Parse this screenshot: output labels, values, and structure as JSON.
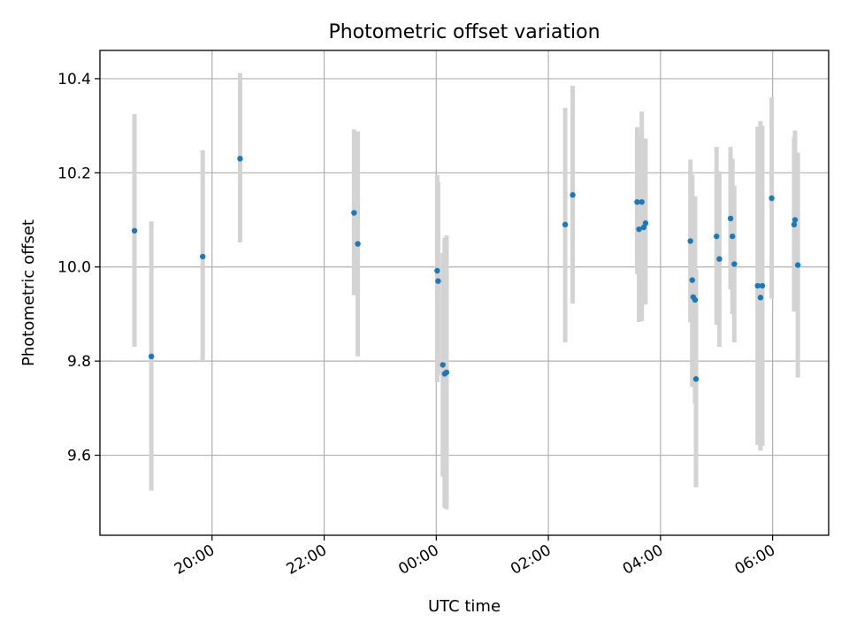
{
  "chart_data": {
    "type": "scatter",
    "title": "Photometric offset variation",
    "xlabel": "UTC time",
    "ylabel": "Photometric offset",
    "x_unit": "hours (UTC, 24h clock wrapping past midnight)",
    "xlim": [
      "18:00",
      "07:00"
    ],
    "ylim": [
      9.43,
      10.46
    ],
    "grid": true,
    "x_ticks": [
      "20:00",
      "22:00",
      "00:00",
      "02:00",
      "04:00",
      "06:00"
    ],
    "y_ticks": [
      "9.6",
      "9.8",
      "10.0",
      "10.2",
      "10.4"
    ],
    "marker_color": "#1f77b4",
    "errorbar_color": "#d3d3d3",
    "points": [
      {
        "x": "18:37",
        "y": 10.077,
        "ylo": 9.83,
        "yhi": 10.325
      },
      {
        "x": "18:55",
        "y": 9.81,
        "ylo": 9.525,
        "yhi": 10.097
      },
      {
        "x": "19:50",
        "y": 10.022,
        "ylo": 9.8,
        "yhi": 10.248
      },
      {
        "x": "20:30",
        "y": 10.23,
        "ylo": 10.052,
        "yhi": 10.412
      },
      {
        "x": "22:32",
        "y": 10.115,
        "ylo": 9.94,
        "yhi": 10.292
      },
      {
        "x": "22:36",
        "y": 10.049,
        "ylo": 9.81,
        "yhi": 10.288
      },
      {
        "x": "00:01",
        "y": 9.992,
        "ylo": 9.755,
        "yhi": 10.195
      },
      {
        "x": "00:02",
        "y": 9.97,
        "ylo": 9.77,
        "yhi": 10.18
      },
      {
        "x": "00:07",
        "y": 9.792,
        "ylo": 9.555,
        "yhi": 10.03
      },
      {
        "x": "00:09",
        "y": 9.773,
        "ylo": 9.488,
        "yhi": 10.062
      },
      {
        "x": "00:11",
        "y": 9.776,
        "ylo": 9.485,
        "yhi": 10.067
      },
      {
        "x": "02:18",
        "y": 10.09,
        "ylo": 9.84,
        "yhi": 10.338
      },
      {
        "x": "02:26",
        "y": 10.153,
        "ylo": 9.922,
        "yhi": 10.385
      },
      {
        "x": "03:35",
        "y": 10.138,
        "ylo": 9.985,
        "yhi": 10.297
      },
      {
        "x": "03:37",
        "y": 10.08,
        "ylo": 9.883,
        "yhi": 10.28
      },
      {
        "x": "03:40",
        "y": 10.138,
        "ylo": 9.885,
        "yhi": 10.33
      },
      {
        "x": "03:42",
        "y": 10.084,
        "ylo": 9.93,
        "yhi": 10.248
      },
      {
        "x": "03:44",
        "y": 10.093,
        "ylo": 9.92,
        "yhi": 10.273
      },
      {
        "x": "04:32",
        "y": 10.055,
        "ylo": 9.882,
        "yhi": 10.228
      },
      {
        "x": "04:34",
        "y": 9.972,
        "ylo": 9.745,
        "yhi": 10.196
      },
      {
        "x": "04:35",
        "y": 9.936,
        "ylo": 9.748,
        "yhi": 10.12
      },
      {
        "x": "04:37",
        "y": 9.93,
        "ylo": 9.71,
        "yhi": 10.15
      },
      {
        "x": "04:38",
        "y": 9.762,
        "ylo": 9.532,
        "yhi": 9.994
      },
      {
        "x": "05:00",
        "y": 10.065,
        "ylo": 9.877,
        "yhi": 10.255
      },
      {
        "x": "05:03",
        "y": 10.017,
        "ylo": 9.83,
        "yhi": 10.203
      },
      {
        "x": "05:15",
        "y": 10.103,
        "ylo": 9.952,
        "yhi": 10.255
      },
      {
        "x": "05:17",
        "y": 10.065,
        "ylo": 9.9,
        "yhi": 10.23
      },
      {
        "x": "05:19",
        "y": 10.006,
        "ylo": 9.84,
        "yhi": 10.173
      },
      {
        "x": "05:44",
        "y": 9.96,
        "ylo": 9.622,
        "yhi": 10.298
      },
      {
        "x": "05:47",
        "y": 9.935,
        "ylo": 9.61,
        "yhi": 10.31
      },
      {
        "x": "05:49",
        "y": 9.96,
        "ylo": 9.62,
        "yhi": 10.3
      },
      {
        "x": "05:59",
        "y": 10.146,
        "ylo": 9.933,
        "yhi": 10.36
      },
      {
        "x": "06:23",
        "y": 10.09,
        "ylo": 9.905,
        "yhi": 10.275
      },
      {
        "x": "06:24",
        "y": 10.1,
        "ylo": 9.906,
        "yhi": 10.29
      },
      {
        "x": "06:27",
        "y": 10.004,
        "ylo": 9.765,
        "yhi": 10.243
      }
    ]
  }
}
